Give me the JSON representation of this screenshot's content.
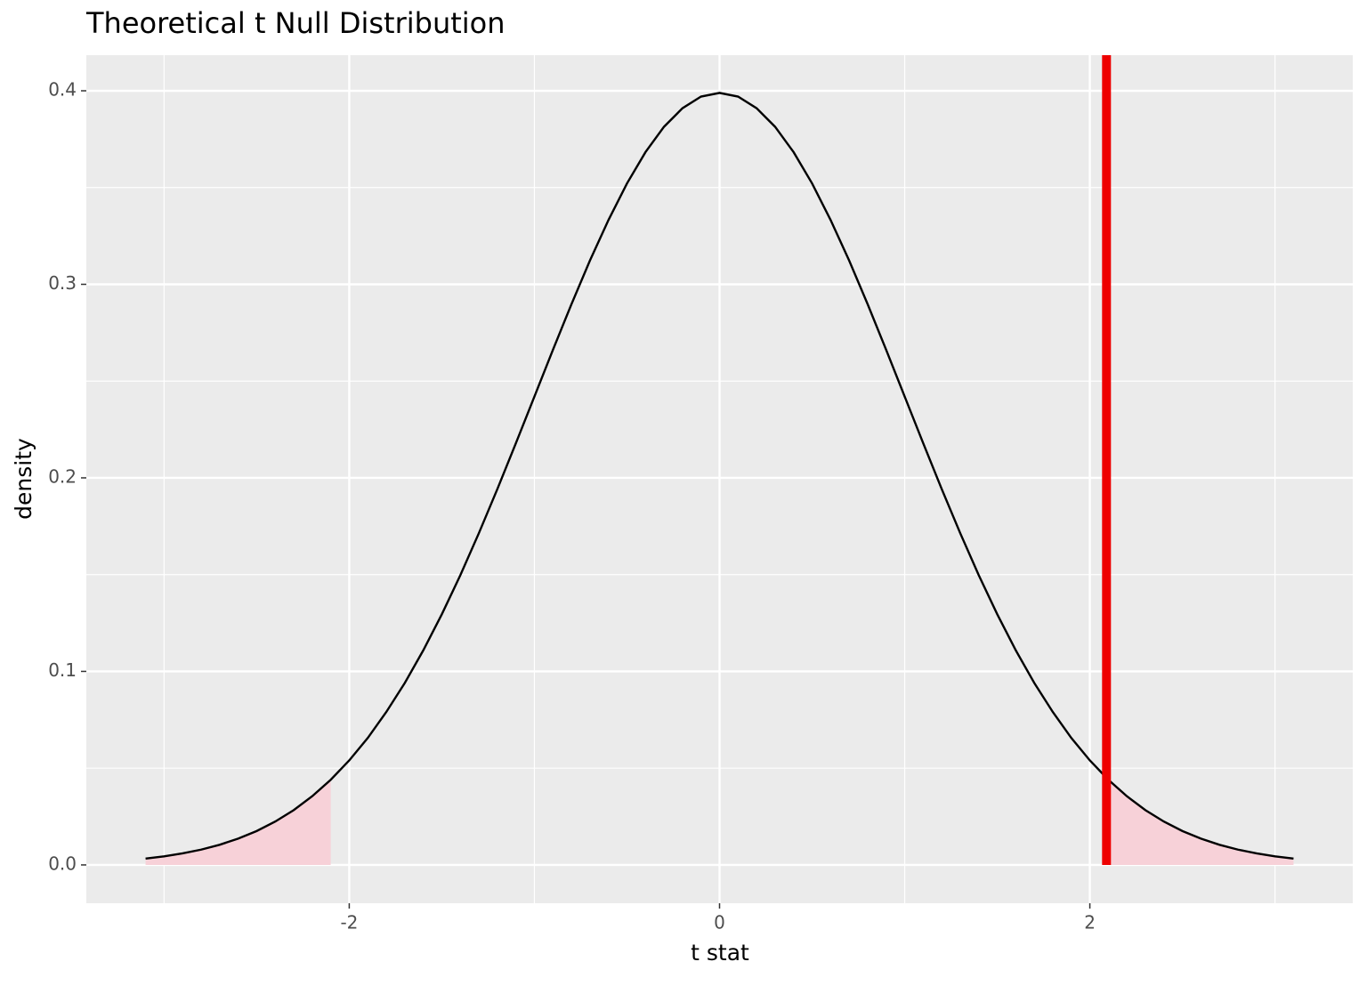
{
  "chart_data": {
    "type": "line",
    "title": "Theoretical t Null Distribution",
    "x_label": "t stat",
    "y_label": "density",
    "x": [
      -3.1,
      -3.0,
      -2.9,
      -2.8,
      -2.7,
      -2.6,
      -2.5,
      -2.4,
      -2.3,
      -2.2,
      -2.1,
      -2.0,
      -1.9,
      -1.8,
      -1.7,
      -1.6,
      -1.5,
      -1.4,
      -1.3,
      -1.2,
      -1.1,
      -1.0,
      -0.9,
      -0.8,
      -0.7,
      -0.6,
      -0.5,
      -0.4,
      -0.3,
      -0.2,
      -0.1,
      0,
      0.1,
      0.2,
      0.3,
      0.4,
      0.5,
      0.6,
      0.7,
      0.8,
      0.9,
      1.0,
      1.1,
      1.2,
      1.3,
      1.4,
      1.5,
      1.6,
      1.7,
      1.8,
      1.9,
      2.0,
      2.1,
      2.2,
      2.3,
      2.4,
      2.5,
      2.6,
      2.7,
      2.8,
      2.9,
      3.0,
      3.1
    ],
    "values": [
      0.0033,
      0.0044,
      0.006,
      0.0079,
      0.0104,
      0.0136,
      0.0175,
      0.0224,
      0.0283,
      0.0355,
      0.044,
      0.054,
      0.0656,
      0.079,
      0.094,
      0.1109,
      0.1295,
      0.1497,
      0.1714,
      0.1942,
      0.2179,
      0.242,
      0.2661,
      0.2897,
      0.3123,
      0.3332,
      0.3521,
      0.3683,
      0.3814,
      0.391,
      0.397,
      0.3989,
      0.397,
      0.391,
      0.3814,
      0.3683,
      0.3521,
      0.3332,
      0.3123,
      0.2897,
      0.2661,
      0.242,
      0.2179,
      0.1942,
      0.1714,
      0.1497,
      0.1295,
      0.1109,
      0.094,
      0.079,
      0.0656,
      0.054,
      0.044,
      0.0355,
      0.0283,
      0.0224,
      0.0175,
      0.0136,
      0.0104,
      0.0079,
      0.006,
      0.0044,
      0.0033
    ],
    "color": "#000000",
    "shade": [
      {
        "x": [
          -3.1,
          -3.0,
          -2.9,
          -2.8,
          -2.7,
          -2.6,
          -2.5,
          -2.4,
          -2.3,
          -2.2,
          -2.1
        ],
        "values": [
          0.0033,
          0.0044,
          0.006,
          0.0079,
          0.0104,
          0.0136,
          0.0175,
          0.0224,
          0.0283,
          0.0355,
          0.044
        ],
        "color": "#f7d1d8"
      },
      {
        "x": [
          2.1,
          2.2,
          2.3,
          2.4,
          2.5,
          2.6,
          2.7,
          2.8,
          2.9,
          3.0,
          3.1
        ],
        "values": [
          0.044,
          0.0355,
          0.0283,
          0.0224,
          0.0175,
          0.0136,
          0.0104,
          0.0079,
          0.006,
          0.0044,
          0.0033
        ],
        "color": "#f7d1d8"
      }
    ],
    "vline": {
      "value": 2.09,
      "color": "#ee0000"
    },
    "xlim": [
      -3.42,
      3.42
    ],
    "ylim": [
      -0.0198,
      0.4184
    ],
    "xticks": [
      -2,
      0,
      2
    ],
    "yticks": [
      {
        "value": 0,
        "label": "0.0"
      },
      0.1,
      0.2,
      0.3,
      0.4
    ],
    "xminor": [
      -3,
      -1,
      1,
      3
    ],
    "yminor": [
      0.05,
      0.15,
      0.25,
      0.35
    ],
    "grid": true
  }
}
